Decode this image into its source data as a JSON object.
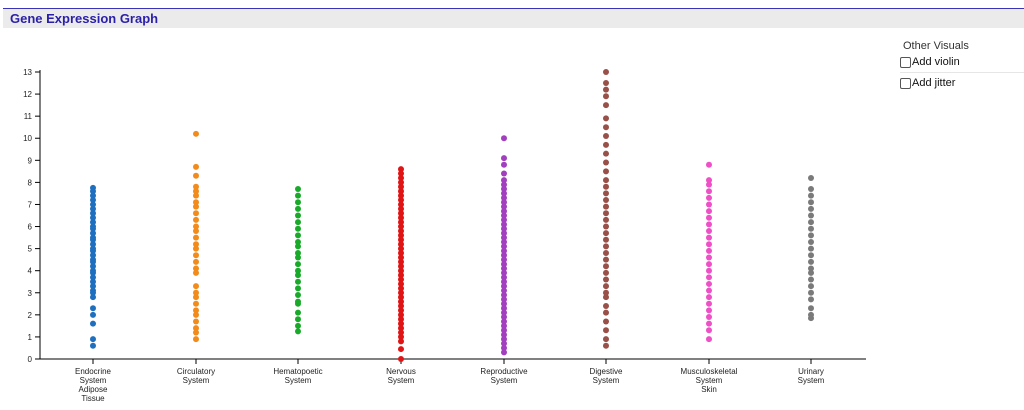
{
  "header": {
    "title": "Gene Expression Graph"
  },
  "controls": {
    "heading": "Other Visuals",
    "options": [
      {
        "label": "Add violin",
        "checked": false
      },
      {
        "label": "Add jitter",
        "checked": false
      }
    ]
  },
  "chart_data": {
    "type": "scatter",
    "title": "",
    "xlabel": "",
    "ylabel": "",
    "ylim": [
      0,
      13
    ],
    "yticks": [
      0,
      1,
      2,
      3,
      4,
      5,
      6,
      7,
      8,
      9,
      10,
      11,
      12,
      13
    ],
    "grid": false,
    "categories": [
      {
        "label": [
          "Endocrine",
          "System",
          "Adipose",
          "Tissue"
        ],
        "color": "#1f6fbf",
        "values": [
          0.6,
          0.9,
          1.6,
          2.0,
          2.3,
          2.8,
          3.0,
          3.1,
          3.3,
          3.5,
          3.7,
          3.9,
          4.0,
          4.2,
          4.4,
          4.5,
          4.7,
          4.9,
          5.0,
          5.2,
          5.4,
          5.5,
          5.7,
          5.9,
          6.0,
          6.2,
          6.4,
          6.6,
          6.8,
          7.0,
          7.2,
          7.4,
          7.6,
          7.75
        ]
      },
      {
        "label": [
          "Circulatory",
          "System"
        ],
        "color": "#f28b1a",
        "values": [
          0.9,
          1.2,
          1.4,
          1.7,
          2.0,
          2.2,
          2.5,
          2.8,
          3.0,
          3.3,
          3.9,
          4.1,
          4.4,
          4.7,
          5.0,
          5.2,
          5.5,
          5.8,
          6.0,
          6.3,
          6.6,
          6.9,
          7.1,
          7.4,
          7.6,
          7.8,
          8.3,
          8.7,
          10.2
        ]
      },
      {
        "label": [
          "Hematopoetic",
          "System"
        ],
        "color": "#1aaa2a",
        "values": [
          1.25,
          1.5,
          1.8,
          2.1,
          2.5,
          2.6,
          2.9,
          3.2,
          3.5,
          3.8,
          4.0,
          4.3,
          4.6,
          4.8,
          5.1,
          5.3,
          5.6,
          5.9,
          6.2,
          6.5,
          6.8,
          7.1,
          7.4,
          7.7
        ]
      },
      {
        "label": [
          "Nervous",
          "System"
        ],
        "color": "#e01414",
        "values": [
          0.0,
          0.45,
          0.8,
          1.0,
          1.2,
          1.4,
          1.6,
          1.8,
          2.0,
          2.2,
          2.4,
          2.6,
          2.8,
          3.0,
          3.2,
          3.4,
          3.6,
          3.8,
          4.0,
          4.2,
          4.4,
          4.6,
          4.8,
          5.0,
          5.2,
          5.4,
          5.6,
          5.8,
          6.0,
          6.2,
          6.4,
          6.6,
          6.8,
          7.0,
          7.2,
          7.4,
          7.6,
          7.8,
          8.0,
          8.2,
          8.4,
          8.6
        ]
      },
      {
        "label": [
          "Reproductive",
          "System"
        ],
        "color": "#a23fbf",
        "values": [
          0.3,
          0.5,
          0.7,
          0.9,
          1.1,
          1.3,
          1.5,
          1.7,
          1.9,
          2.1,
          2.3,
          2.5,
          2.7,
          2.9,
          3.1,
          3.3,
          3.5,
          3.7,
          3.9,
          4.1,
          4.3,
          4.5,
          4.7,
          4.9,
          5.1,
          5.3,
          5.5,
          5.7,
          5.9,
          6.1,
          6.3,
          6.5,
          6.7,
          6.9,
          7.1,
          7.3,
          7.5,
          7.7,
          7.9,
          8.1,
          8.4,
          8.8,
          9.1,
          10.0
        ]
      },
      {
        "label": [
          "Digestive",
          "System"
        ],
        "color": "#985048",
        "values": [
          0.6,
          0.9,
          1.3,
          1.7,
          2.1,
          2.4,
          2.8,
          3.0,
          3.3,
          3.6,
          3.9,
          4.2,
          4.5,
          4.8,
          5.1,
          5.4,
          5.7,
          6.0,
          6.3,
          6.6,
          6.9,
          7.2,
          7.5,
          7.8,
          8.1,
          8.5,
          8.9,
          9.3,
          9.7,
          10.1,
          10.5,
          10.9,
          11.5,
          11.9,
          12.2,
          12.5,
          13.0
        ]
      },
      {
        "label": [
          "Musculoskeletal",
          "System",
          "Skin"
        ],
        "color": "#ef4fc7",
        "values": [
          0.9,
          1.3,
          1.6,
          1.9,
          2.2,
          2.5,
          2.8,
          3.1,
          3.4,
          3.7,
          4.0,
          4.3,
          4.6,
          4.9,
          5.2,
          5.5,
          5.8,
          6.1,
          6.4,
          6.7,
          7.0,
          7.3,
          7.6,
          7.9,
          8.1,
          8.8
        ]
      },
      {
        "label": [
          "Urinary",
          "System"
        ],
        "color": "#7a7a7a",
        "values": [
          1.85,
          2.0,
          2.3,
          2.7,
          3.0,
          3.3,
          3.6,
          3.9,
          4.1,
          4.4,
          4.7,
          5.0,
          5.3,
          5.6,
          5.9,
          6.2,
          6.5,
          6.8,
          7.1,
          7.4,
          7.7,
          8.2
        ]
      }
    ]
  }
}
